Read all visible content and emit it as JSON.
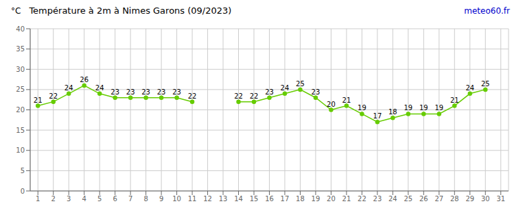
{
  "chart_data": {
    "type": "line",
    "title": "Température à 2m à Nimes Garons (09/2023)",
    "ylabel": "°C",
    "annotations": [
      {
        "text": "meteo60.fr",
        "color": "#0000cc"
      }
    ],
    "x": [
      1,
      2,
      3,
      4,
      5,
      6,
      7,
      8,
      9,
      10,
      11,
      12,
      13,
      14,
      15,
      16,
      17,
      18,
      19,
      20,
      21,
      22,
      23,
      24,
      25,
      26,
      27,
      28,
      29,
      30,
      31
    ],
    "values": [
      21,
      22,
      24,
      26,
      24,
      23,
      23,
      23,
      23,
      23,
      22,
      null,
      null,
      22,
      22,
      23,
      24,
      25,
      23,
      20,
      21,
      19,
      17,
      18,
      19,
      19,
      19,
      21,
      24,
      25,
      null
    ],
    "color": "#66cc00",
    "marker": "circle",
    "xlim": [
      0.5,
      31.5
    ],
    "xticks": [
      1,
      2,
      3,
      4,
      5,
      6,
      7,
      8,
      9,
      10,
      11,
      12,
      13,
      14,
      15,
      16,
      17,
      18,
      19,
      20,
      21,
      22,
      23,
      24,
      25,
      26,
      27,
      28,
      29,
      30,
      31
    ],
    "ylim": [
      0,
      40
    ],
    "yticks": [
      0,
      5,
      10,
      15,
      20,
      25,
      30,
      35,
      40
    ],
    "grid": true,
    "data_labels": true
  }
}
